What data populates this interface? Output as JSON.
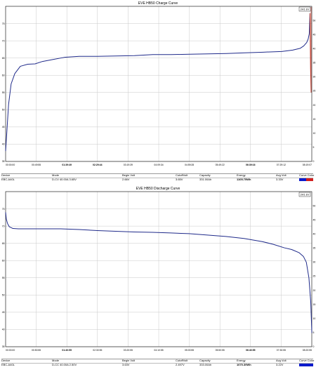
{
  "chart_data": [
    {
      "type": "line",
      "title": "EVE HB50 Charge Curve",
      "legend_badge": "24/1 EV",
      "x_tick_labels": [
        "00:00:00",
        "00:49:55",
        "01:39:49",
        "02:29:44",
        "03:19:39",
        "04:09:34",
        "04:59:28",
        "05:49:22",
        "06:39:16",
        "07:29:12",
        "08:19:07"
      ],
      "x_tick_bold": [
        false,
        false,
        true,
        true,
        false,
        false,
        false,
        false,
        true,
        false,
        false
      ],
      "y_left_ticks": [
        35,
        40,
        45,
        50,
        55,
        60,
        65,
        70,
        75
      ],
      "y_left_range": [
        35,
        80
      ],
      "y_right_ticks": [
        0,
        5,
        10,
        15,
        20,
        25,
        30,
        35,
        40,
        45,
        50
      ],
      "y_right_range": [
        0,
        55
      ],
      "grid": true,
      "series": [
        {
          "color": "#1f2a8a",
          "x_hours": [
            0,
            0.03,
            0.08,
            0.15,
            0.25,
            0.4,
            0.6,
            0.8,
            1.0,
            1.3,
            1.6,
            2.0,
            2.5,
            3.0,
            3.5,
            4.0,
            4.5,
            5.0,
            5.5,
            6.0,
            6.5,
            7.0,
            7.5,
            7.8,
            8.0,
            8.1,
            8.18,
            8.22,
            8.25,
            8.27
          ],
          "y": [
            38.0,
            43.0,
            51.5,
            57.5,
            60.5,
            62.6,
            63.2,
            63.3,
            64.0,
            64.6,
            65.2,
            65.5,
            65.5,
            65.6,
            65.7,
            66.0,
            66.0,
            66.1,
            66.2,
            66.3,
            66.5,
            66.7,
            66.9,
            67.3,
            67.8,
            68.5,
            69.5,
            70.5,
            72.0,
            78.0
          ]
        },
        {
          "color": "#c0392b",
          "x_hours": [
            8.27,
            8.285,
            8.3
          ],
          "y": [
            78.0,
            62.0,
            55.0
          ]
        }
      ],
      "table": {
        "headers": [
          "Device",
          "Mode",
          "Begin Volt",
          "CutoffVolt",
          "Capacity",
          "Energy",
          "Avg Volt",
          "Curve Color"
        ],
        "values": [
          "EBC-A40L",
          "D-CV  40.00A  3.65V",
          "2.66V",
          "3.65V",
          "331.00Ah",
          "1105.75Wh",
          "3.33V",
          ""
        ],
        "bold": [
          false,
          false,
          false,
          false,
          false,
          true,
          false,
          false
        ],
        "swatch_colors": [
          "#0c1acc",
          "#d11f1f"
        ]
      }
    },
    {
      "type": "line",
      "title": "EVE HB50 Discharge Curve",
      "legend_badge": "24/1 EV",
      "x_tick_labels": [
        "00:00:00",
        "00:50:55",
        "01:40:55",
        "02:30:55",
        "03:20:55",
        "04:10:55",
        "05:00:55",
        "05:50:55",
        "06:40:55",
        "07:30:55",
        "08:20:55"
      ],
      "x_tick_bold": [
        false,
        false,
        true,
        false,
        false,
        false,
        false,
        false,
        true,
        false,
        false
      ],
      "y_left_ticks": [
        35,
        40,
        45,
        50,
        55,
        60,
        65,
        70,
        75
      ],
      "y_left_range": [
        35,
        80
      ],
      "y_right_ticks": [
        0,
        5,
        10,
        15,
        20,
        25,
        30,
        35,
        40,
        45,
        50
      ],
      "y_right_range": [
        0,
        55
      ],
      "grid": true,
      "series": [
        {
          "color": "#1f2a8a",
          "x_hours": [
            0,
            0.02,
            0.05,
            0.1,
            0.2,
            0.35,
            0.5,
            1.0,
            1.5,
            2.0,
            2.5,
            3.0,
            3.5,
            4.0,
            4.5,
            5.0,
            5.5,
            6.0,
            6.5,
            7.0,
            7.3,
            7.6,
            7.8,
            8.0,
            8.12,
            8.2,
            8.27,
            8.32,
            8.35
          ],
          "y": [
            74.0,
            72.0,
            70.8,
            69.8,
            69.3,
            69.2,
            69.2,
            69.2,
            69.2,
            69.0,
            68.7,
            68.5,
            68.3,
            68.2,
            68.0,
            67.8,
            67.4,
            67.0,
            66.4,
            65.5,
            64.7,
            63.7,
            63.2,
            62.3,
            61.2,
            59.5,
            55.0,
            48.0,
            39.0
          ]
        }
      ],
      "table": {
        "headers": [
          "Device",
          "Mode",
          "Begin Volt",
          "CutoffVolt",
          "Capacity",
          "Energy",
          "Avg Volt",
          "Curve Color"
        ],
        "values": [
          "EBC-A40L",
          "D-CC  40.00A  2.50V",
          "3.63V",
          "2.497V",
          "333.00Ah",
          "1070.39Wh",
          "3.22V",
          ""
        ],
        "bold": [
          false,
          false,
          false,
          false,
          false,
          true,
          false,
          false
        ],
        "swatch_colors": [
          "#0c1acc",
          "#0c1acc"
        ]
      }
    }
  ]
}
